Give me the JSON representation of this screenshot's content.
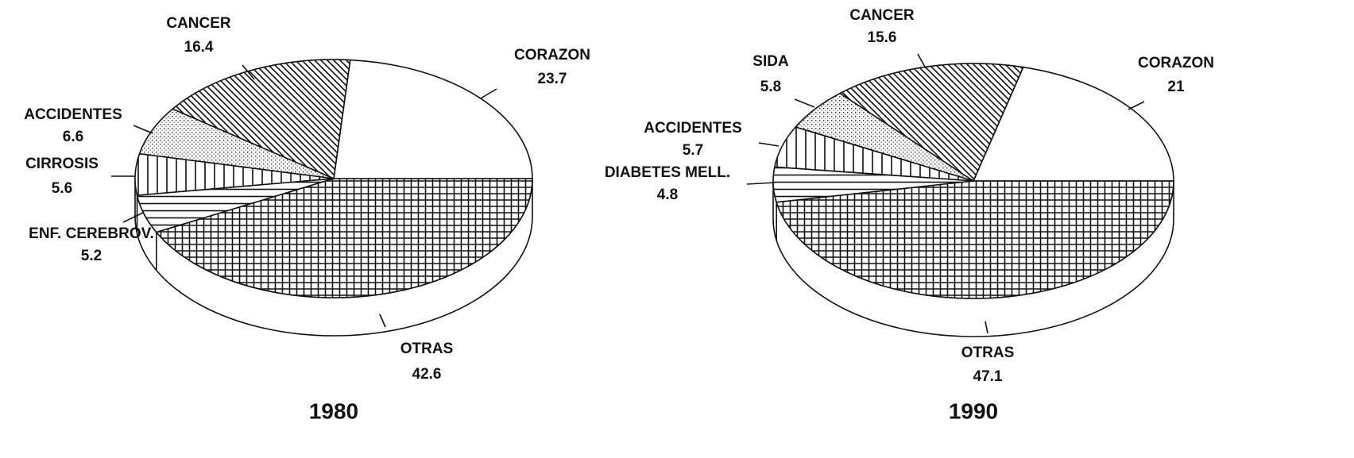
{
  "chart_data": [
    {
      "type": "pie",
      "title": "1980",
      "labels": [
        "CORAZON",
        "CANCER",
        "ACCIDENTES",
        "CIRROSIS",
        "ENF. CEREBROV.",
        "OTRAS"
      ],
      "values": [
        23.7,
        16.4,
        6.6,
        5.6,
        5.2,
        42.6
      ],
      "patterns": [
        "white",
        "diagonal",
        "dots",
        "vertical",
        "horizontal",
        "grid"
      ]
    },
    {
      "type": "pie",
      "title": "1990",
      "labels": [
        "CORAZON",
        "CANCER",
        "SIDA",
        "ACCIDENTES",
        "DIABETES MELL.",
        "OTRAS"
      ],
      "values": [
        21,
        15.6,
        5.8,
        5.7,
        4.8,
        47.1
      ],
      "patterns": [
        "white",
        "diagonal",
        "dots",
        "vertical",
        "horizontal",
        "grid"
      ]
    }
  ]
}
